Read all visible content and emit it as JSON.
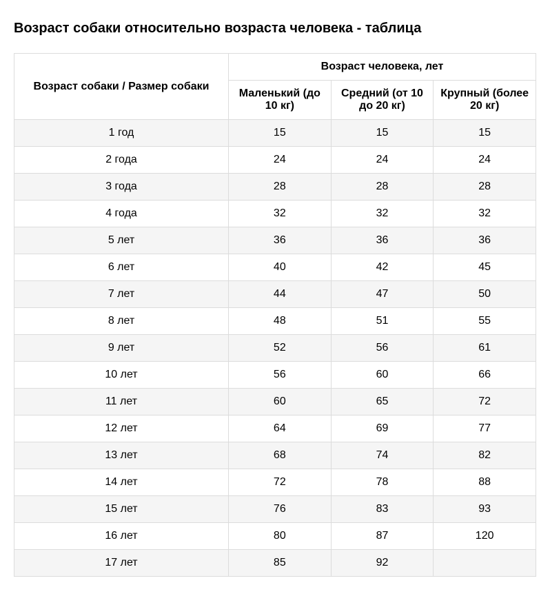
{
  "title": "Возраст собаки относительно возраста человека - таблица",
  "table": {
    "type": "table",
    "background_color": "#ffffff",
    "row_stripe_color": "#f5f5f5",
    "border_color": "#dcdcdc",
    "header_fontsize": 16,
    "cell_fontsize": 16,
    "super_header": "Возраст человека, лет",
    "row_header_label": "Возраст собаки / Размер собаки",
    "columns": [
      "Маленький (до 10 кг)",
      "Средний (от 10 до 20 кг)",
      "Крупный (более 20 кг)"
    ],
    "rows": [
      {
        "label": "1 год",
        "values": [
          "15",
          "15",
          "15"
        ]
      },
      {
        "label": "2 года",
        "values": [
          "24",
          "24",
          "24"
        ]
      },
      {
        "label": "3 года",
        "values": [
          "28",
          "28",
          "28"
        ]
      },
      {
        "label": "4 года",
        "values": [
          "32",
          "32",
          "32"
        ]
      },
      {
        "label": "5 лет",
        "values": [
          "36",
          "36",
          "36"
        ]
      },
      {
        "label": "6 лет",
        "values": [
          "40",
          "42",
          "45"
        ]
      },
      {
        "label": "7 лет",
        "values": [
          "44",
          "47",
          "50"
        ]
      },
      {
        "label": "8 лет",
        "values": [
          "48",
          "51",
          "55"
        ]
      },
      {
        "label": "9 лет",
        "values": [
          "52",
          "56",
          "61"
        ]
      },
      {
        "label": "10 лет",
        "values": [
          "56",
          "60",
          "66"
        ]
      },
      {
        "label": "11 лет",
        "values": [
          "60",
          "65",
          "72"
        ]
      },
      {
        "label": "12 лет",
        "values": [
          "64",
          "69",
          "77"
        ]
      },
      {
        "label": "13 лет",
        "values": [
          "68",
          "74",
          "82"
        ]
      },
      {
        "label": "14 лет",
        "values": [
          "72",
          "78",
          "88"
        ]
      },
      {
        "label": "15 лет",
        "values": [
          "76",
          "83",
          "93"
        ]
      },
      {
        "label": "16 лет",
        "values": [
          "80",
          "87",
          "120"
        ]
      },
      {
        "label": "17 лет",
        "values": [
          "85",
          "92",
          ""
        ]
      }
    ]
  }
}
